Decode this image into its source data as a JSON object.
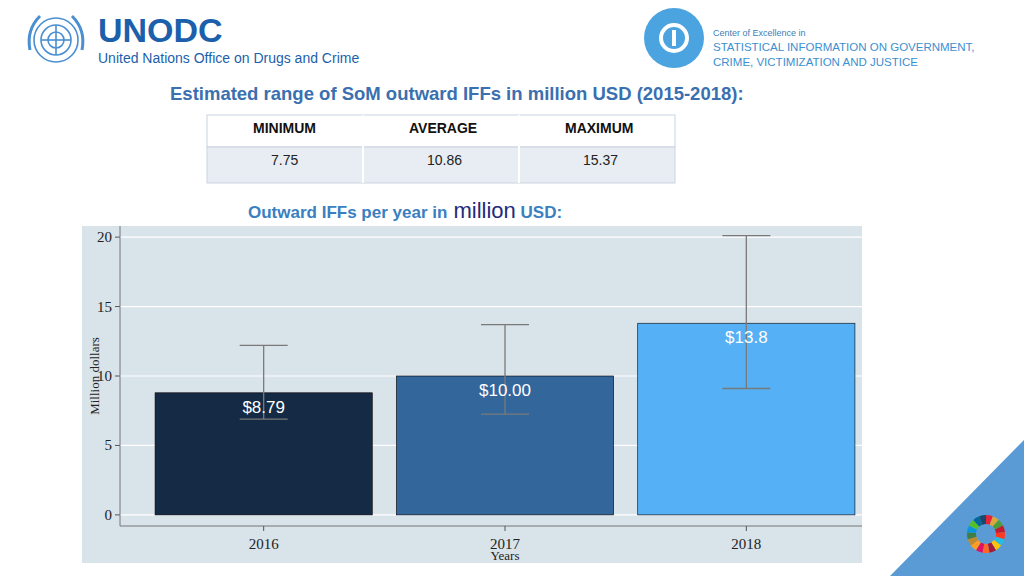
{
  "header": {
    "org": "UNODC",
    "org_full": "United Nations Office on Drugs and Crime",
    "coe_intro": "Center of Excellence in",
    "coe_name": [
      "STATISTICAL INFORMATION ON GOVERNMENT,",
      "CRIME, VICTIMIZATION AND JUSTICE"
    ]
  },
  "range_table": {
    "title": "Estimated range of SoM outward IFFs in million USD (2015-2018):",
    "columns": [
      "MINIMUM",
      "AVERAGE",
      "MAXIMUM"
    ],
    "rows": [
      [
        7.75,
        10.86,
        15.37
      ]
    ]
  },
  "chart_data": {
    "type": "bar",
    "title": [
      "Outward IFFs per year in",
      "million",
      "USD:"
    ],
    "x_label": "Years",
    "y_label": "Million dollars",
    "categories": [
      "2016",
      "2017",
      "2018"
    ],
    "values": [
      8.79,
      10,
      13.8
    ],
    "value_labels": [
      "$8.79",
      "$10.00",
      "$13.8"
    ],
    "lower": [
      6.9,
      7.25,
      9.1
    ],
    "upper": [
      12.2,
      13.7,
      20.1
    ],
    "colors": [
      "#152a44",
      "#33669a",
      "#55b0f5"
    ],
    "ylim": [
      -0.8,
      20.8
    ],
    "yticks": [
      0,
      5,
      10,
      15,
      20
    ],
    "grid": true,
    "data_labels": true
  }
}
